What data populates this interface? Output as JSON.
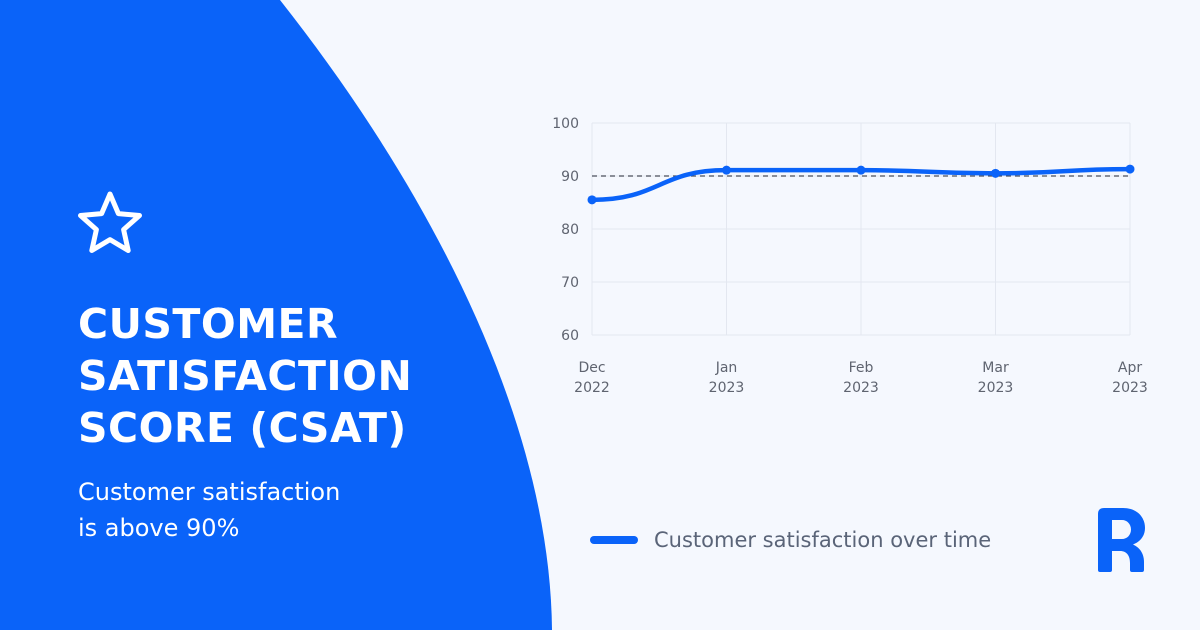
{
  "colors": {
    "brand_blue": "#0a63f9",
    "background": "#f5f8fe",
    "grid": "#e3e7f0",
    "axis_text": "#5f6470",
    "threshold_line": "#4a4f5c"
  },
  "icons": {
    "badge": "star-icon",
    "brand_logo": "r-logo-icon"
  },
  "headline": [
    "CUSTOMER",
    "SATISFACTION",
    "SCORE (CSAT)"
  ],
  "subtext": [
    "Customer satisfaction",
    "is above 90%"
  ],
  "chart_data": {
    "type": "line",
    "title": "",
    "xlabel": "",
    "ylabel": "",
    "categories": [
      [
        "Dec",
        "2022"
      ],
      [
        "Jan",
        "2023"
      ],
      [
        "Feb",
        "2023"
      ],
      [
        "Mar",
        "2023"
      ],
      [
        "Apr",
        "2023"
      ]
    ],
    "yticks": [
      100,
      90,
      80,
      70,
      60
    ],
    "ylim": [
      60,
      100
    ],
    "grid": true,
    "legend_position": "bottom-left",
    "threshold": 90,
    "series": [
      {
        "name": "Customer satisfaction over time",
        "values": [
          85.5,
          91.1,
          91.1,
          90.5,
          91.3
        ]
      }
    ]
  }
}
